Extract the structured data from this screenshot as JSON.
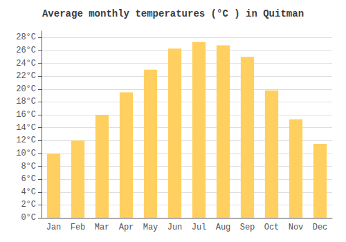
{
  "chart_data": {
    "type": "bar",
    "title": "Average monthly temperatures (°C ) in Quitman",
    "categories": [
      "Jan",
      "Feb",
      "Mar",
      "Apr",
      "May",
      "Jun",
      "Jul",
      "Aug",
      "Sep",
      "Oct",
      "Nov",
      "Dec"
    ],
    "values": [
      10.0,
      12.0,
      16.0,
      19.5,
      23.0,
      26.3,
      27.3,
      26.8,
      25.0,
      19.8,
      15.3,
      11.5
    ],
    "color": "#FFD060",
    "ylim": [
      0,
      29
    ],
    "yticks": [
      {
        "value": 0,
        "label": "0°C"
      },
      {
        "value": 2,
        "label": "2°C"
      },
      {
        "value": 4,
        "label": "4°C"
      },
      {
        "value": 6,
        "label": "6°C"
      },
      {
        "value": 8,
        "label": "8°C"
      },
      {
        "value": 10,
        "label": "10°C"
      },
      {
        "value": 12,
        "label": "12°C"
      },
      {
        "value": 14,
        "label": "14°C"
      },
      {
        "value": 16,
        "label": "16°C"
      },
      {
        "value": 18,
        "label": "18°C"
      },
      {
        "value": 20,
        "label": "20°C"
      },
      {
        "value": 22,
        "label": "22°C"
      },
      {
        "value": 24,
        "label": "24°C"
      },
      {
        "value": 26,
        "label": "26°C"
      },
      {
        "value": 28,
        "label": "28°C"
      }
    ],
    "grid": true
  }
}
